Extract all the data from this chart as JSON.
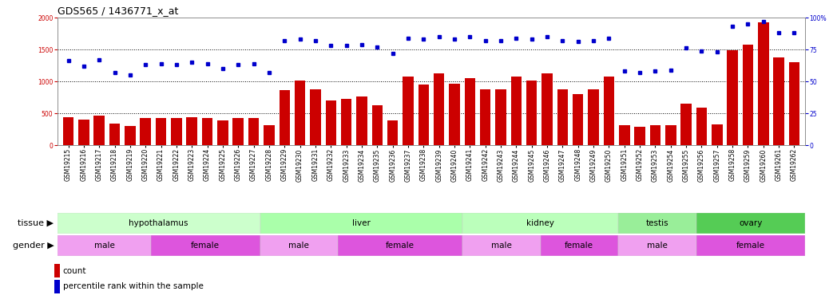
{
  "title": "GDS565 / 1436771_x_at",
  "samples": [
    "GSM19215",
    "GSM19216",
    "GSM19217",
    "GSM19218",
    "GSM19219",
    "GSM19220",
    "GSM19221",
    "GSM19222",
    "GSM19223",
    "GSM19224",
    "GSM19225",
    "GSM19226",
    "GSM19227",
    "GSM19228",
    "GSM19229",
    "GSM19230",
    "GSM19231",
    "GSM19232",
    "GSM19233",
    "GSM19234",
    "GSM19235",
    "GSM19236",
    "GSM19237",
    "GSM19238",
    "GSM19239",
    "GSM19240",
    "GSM19241",
    "GSM19242",
    "GSM19243",
    "GSM19244",
    "GSM19245",
    "GSM19246",
    "GSM19247",
    "GSM19248",
    "GSM19249",
    "GSM19250",
    "GSM19251",
    "GSM19252",
    "GSM19253",
    "GSM19254",
    "GSM19255",
    "GSM19256",
    "GSM19257",
    "GSM19258",
    "GSM19259",
    "GSM19260",
    "GSM19261",
    "GSM19262"
  ],
  "counts": [
    440,
    400,
    460,
    340,
    300,
    420,
    430,
    420,
    440,
    430,
    390,
    420,
    420,
    310,
    860,
    1010,
    880,
    700,
    720,
    760,
    620,
    390,
    1070,
    950,
    1130,
    960,
    1050,
    870,
    870,
    1070,
    1010,
    1120,
    870,
    800,
    870,
    1070,
    310,
    290,
    310,
    310,
    650,
    590,
    330,
    1490,
    1570,
    1920,
    1370,
    1300
  ],
  "percentile": [
    66,
    62,
    67,
    57,
    55,
    63,
    64,
    63,
    65,
    64,
    60,
    63,
    64,
    57,
    82,
    83,
    82,
    78,
    78,
    79,
    77,
    72,
    84,
    83,
    85,
    83,
    85,
    82,
    82,
    84,
    83,
    85,
    82,
    81,
    82,
    84,
    58,
    57,
    58,
    59,
    76,
    74,
    73,
    93,
    95,
    97,
    88,
    88
  ],
  "bar_color": "#cc0000",
  "dot_color": "#0000cc",
  "ylim_left": [
    0,
    2000
  ],
  "ylim_right": [
    0,
    100
  ],
  "yticks_left": [
    0,
    500,
    1000,
    1500,
    2000
  ],
  "yticks_right": [
    0,
    25,
    50,
    75,
    100
  ],
  "hlines": [
    500,
    1000,
    1500
  ],
  "bg_color": "#ffffff",
  "tissue_groups": [
    {
      "label": "hypothalamus",
      "start": 0,
      "end": 13,
      "color": "#ccffcc"
    },
    {
      "label": "liver",
      "start": 13,
      "end": 26,
      "color": "#aaffaa"
    },
    {
      "label": "kidney",
      "start": 26,
      "end": 36,
      "color": "#bbffbb"
    },
    {
      "label": "testis",
      "start": 36,
      "end": 41,
      "color": "#99ee99"
    },
    {
      "label": "ovary",
      "start": 41,
      "end": 48,
      "color": "#55cc55"
    }
  ],
  "gender_groups": [
    {
      "label": "male",
      "start": 0,
      "end": 6,
      "color": "#f0a0f0"
    },
    {
      "label": "female",
      "start": 6,
      "end": 13,
      "color": "#dd55dd"
    },
    {
      "label": "male",
      "start": 13,
      "end": 18,
      "color": "#f0a0f0"
    },
    {
      "label": "female",
      "start": 18,
      "end": 26,
      "color": "#dd55dd"
    },
    {
      "label": "male",
      "start": 26,
      "end": 31,
      "color": "#f0a0f0"
    },
    {
      "label": "female",
      "start": 31,
      "end": 36,
      "color": "#dd55dd"
    },
    {
      "label": "male",
      "start": 36,
      "end": 41,
      "color": "#f0a0f0"
    },
    {
      "label": "female",
      "start": 41,
      "end": 48,
      "color": "#dd55dd"
    }
  ],
  "row_label_tissue": "tissue",
  "row_label_gender": "gender",
  "legend_count_label": "count",
  "legend_pct_label": "percentile rank within the sample",
  "title_fontsize": 9,
  "tick_fontsize": 5.5,
  "label_fontsize": 7.5,
  "row_label_fontsize": 8
}
